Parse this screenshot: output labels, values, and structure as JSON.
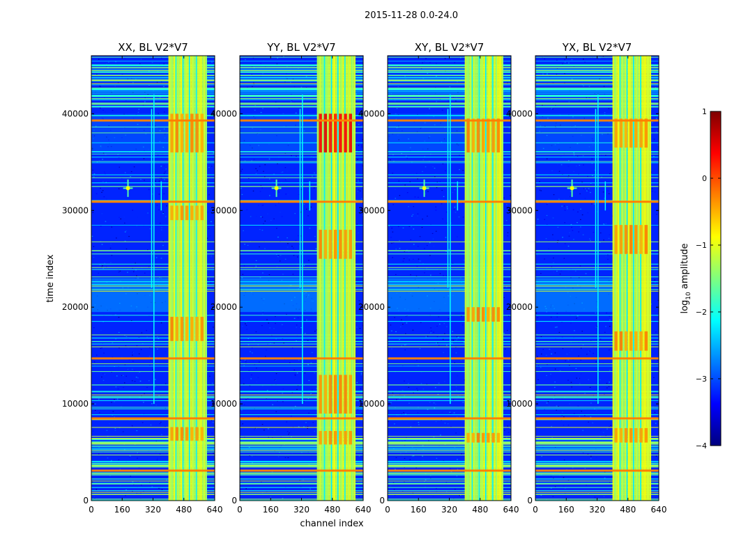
{
  "figure": {
    "suptitle": "2015-11-28 0.0-24.0",
    "xlabel": "channel index",
    "ylabel": "time index"
  },
  "chart_data": {
    "type": "heatmap",
    "title": "2015-11-28 0.0-24.0",
    "xlabel": "channel index",
    "ylabel": "time index",
    "xlim": [
      0,
      640
    ],
    "ylim": [
      0,
      46000
    ],
    "xticks": [
      "0",
      "160",
      "320",
      "480",
      "640"
    ],
    "xtick_values": [
      0,
      160,
      320,
      480,
      640
    ],
    "yticks": [
      "0",
      "10000",
      "20000",
      "30000",
      "40000"
    ],
    "ytick_values": [
      0,
      10000,
      20000,
      30000,
      40000
    ],
    "panels": [
      {
        "title": "XX, BL V2*V7",
        "polarization": "XX"
      },
      {
        "title": "YY, BL V2*V7",
        "polarization": "YY"
      },
      {
        "title": "XY, BL V2*V7",
        "polarization": "XY"
      },
      {
        "title": "YX, BL V2*V7",
        "polarization": "YX"
      }
    ],
    "colorbar": {
      "label": "log10 amplitude",
      "label_main": "log",
      "label_sub": "10",
      "label_rest": " amplitude",
      "range": [
        -4,
        1
      ],
      "ticks": [
        "1",
        "0",
        "−1",
        "−2",
        "−3",
        "−4"
      ],
      "tick_values": [
        1,
        0,
        -1,
        -2,
        -3,
        -4
      ],
      "colormap": "jet",
      "colors": [
        "#00007f",
        "#0000ff",
        "#007fff",
        "#00ffff",
        "#7fff7f",
        "#ffff00",
        "#ff7f00",
        "#ff0000",
        "#7f0000"
      ]
    },
    "features": {
      "rfi_channel_band": [
        400,
        600
      ],
      "strong_time_rows": [
        3100,
        8500,
        14700,
        30900,
        39300
      ],
      "bright_spot": {
        "channel": 190,
        "time": 32300
      }
    }
  }
}
